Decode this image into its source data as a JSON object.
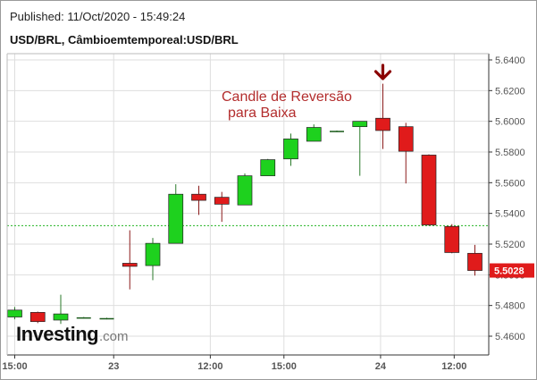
{
  "header": {
    "published": "Published: 11/Oct/2020 - 15:49:24",
    "symbol": "USD/BRL, Câmbioemtemporeal:USD/BRL"
  },
  "logo": {
    "main": "Investing",
    "suffix": ".com"
  },
  "annotation": {
    "line1": "Candle de Reversão",
    "line2": "para Baixa",
    "color": "#b32d2d"
  },
  "colors": {
    "up": "#1ed11e",
    "down": "#e01b1b",
    "grid": "#dedede",
    "hline": "#22b322",
    "badge": "#e01b1b",
    "arrow": "#8b0000"
  },
  "chart_data": {
    "type": "candlestick",
    "title": "USD/BRL, Câmbioemtemporeal:USD/BRL",
    "ylim": [
      5.44,
      5.645
    ],
    "y_ticks": [
      5.46,
      5.48,
      5.5,
      5.52,
      5.54,
      5.56,
      5.58,
      5.6,
      5.62,
      5.64
    ],
    "y_tick_labels": [
      "5.4600",
      "5.4800",
      "5.5000",
      "5.5200",
      "5.5400",
      "5.5600",
      "5.5800",
      "5.6000",
      "5.6200",
      "5.6400"
    ],
    "x_ticks": [
      {
        "label": "15:00",
        "index": 0
      },
      {
        "label": "23",
        "index": 4.3
      },
      {
        "label": "12:00",
        "index": 8.5
      },
      {
        "label": "15:00",
        "index": 11.7
      },
      {
        "label": "24",
        "index": 15.9
      },
      {
        "label": "12:00",
        "index": 19.1
      }
    ],
    "horizontal_line": 5.532,
    "last_price": 5.5028,
    "last_price_label": "5.5028",
    "grid": true,
    "candles": [
      {
        "o": 5.4725,
        "h": 5.479,
        "l": 5.471,
        "c": 5.477
      },
      {
        "o": 5.4755,
        "h": 5.476,
        "l": 5.4685,
        "c": 5.4695
      },
      {
        "o": 5.4705,
        "h": 5.487,
        "l": 5.468,
        "c": 5.4745
      },
      {
        "o": 5.472,
        "h": 5.4725,
        "l": 5.4715,
        "c": 5.472
      },
      {
        "o": 5.4715,
        "h": 5.472,
        "l": 5.471,
        "c": 5.4715
      },
      {
        "o": 5.5075,
        "h": 5.529,
        "l": 5.4905,
        "c": 5.5055
      },
      {
        "o": 5.506,
        "h": 5.524,
        "l": 5.4965,
        "c": 5.5205
      },
      {
        "o": 5.5205,
        "h": 5.559,
        "l": 5.5205,
        "c": 5.5525
      },
      {
        "o": 5.5525,
        "h": 5.558,
        "l": 5.539,
        "c": 5.5485
      },
      {
        "o": 5.5505,
        "h": 5.554,
        "l": 5.5345,
        "c": 5.546
      },
      {
        "o": 5.5455,
        "h": 5.566,
        "l": 5.5455,
        "c": 5.5645
      },
      {
        "o": 5.5645,
        "h": 5.5755,
        "l": 5.5645,
        "c": 5.575
      },
      {
        "o": 5.5755,
        "h": 5.592,
        "l": 5.571,
        "c": 5.5885
      },
      {
        "o": 5.587,
        "h": 5.598,
        "l": 5.587,
        "c": 5.596
      },
      {
        "o": 5.5935,
        "h": 5.594,
        "l": 5.593,
        "c": 5.5935
      },
      {
        "o": 5.5965,
        "h": 5.6,
        "l": 5.5645,
        "c": 5.6
      },
      {
        "o": 5.602,
        "h": 5.6245,
        "l": 5.582,
        "c": 5.594
      },
      {
        "o": 5.5965,
        "h": 5.599,
        "l": 5.5595,
        "c": 5.5805
      },
      {
        "o": 5.578,
        "h": 5.5785,
        "l": 5.532,
        "c": 5.5325
      },
      {
        "o": 5.5315,
        "h": 5.533,
        "l": 5.514,
        "c": 5.5145
      },
      {
        "o": 5.514,
        "h": 5.5195,
        "l": 5.4995,
        "c": 5.5028
      }
    ]
  }
}
